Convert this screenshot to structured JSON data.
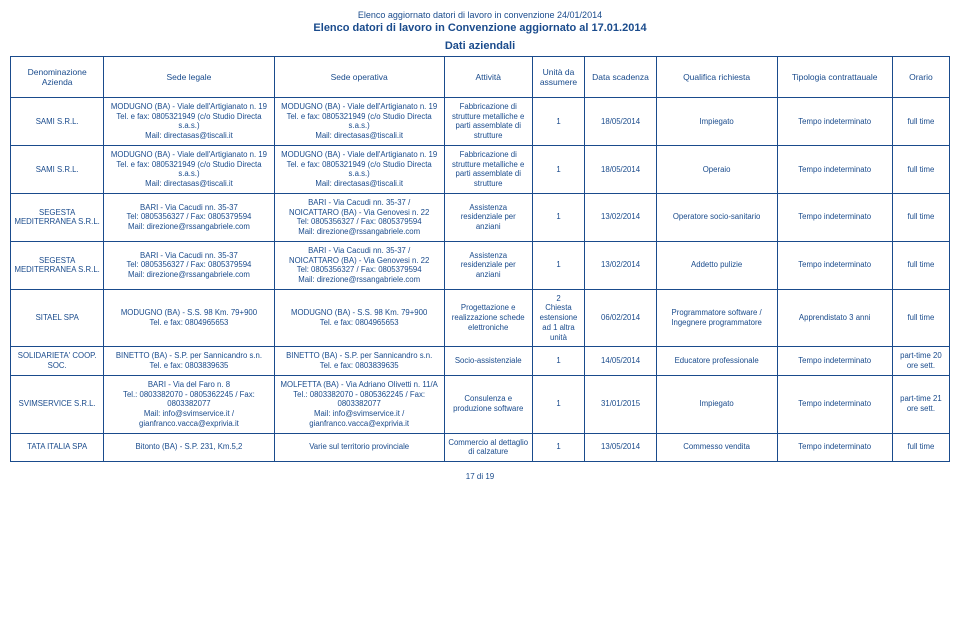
{
  "header": {
    "line1": "Elenco aggiornato datori di lavoro in convenzione 24/01/2014",
    "line2": "Elenco datori di lavoro in Convenzione aggiornato al 17.01.2014",
    "subtitle": "Dati aziendali"
  },
  "columns": {
    "denominazione": "Denominazione Azienda",
    "sede_legale": "Sede legale",
    "sede_operativa": "Sede operativa",
    "attivita": "Attività",
    "unita": "Unità da assumere",
    "scadenza": "Data scadenza",
    "qualifica": "Qualifica richiesta",
    "tipologia": "Tipologia contrattauale",
    "orario": "Orario"
  },
  "rows": [
    {
      "denominazione": "SAMI S.R.L.",
      "sede_legale": "MODUGNO (BA) - Viale dell'Artigianato n. 19\nTel. e fax: 0805321949 (c/o Studio Directa s.a.s.)\nMail: directasas@tiscali.it",
      "sede_operativa": "MODUGNO (BA) - Viale dell'Artigianato n. 19\nTel. e fax: 0805321949 (c/o Studio Directa s.a.s.)\nMail: directasas@tiscali.it",
      "attivita": "Fabbricazione di strutture metalliche e parti assemblate di strutture",
      "unita": "1",
      "scadenza": "18/05/2014",
      "qualifica": "Impiegato",
      "tipologia": "Tempo indeterminato",
      "orario": "full time"
    },
    {
      "denominazione": "SAMI S.R.L.",
      "sede_legale": "MODUGNO (BA) - Viale dell'Artigianato n. 19\nTel. e fax: 0805321949 (c/o Studio Directa s.a.s.)\nMail: directasas@tiscali.it",
      "sede_operativa": "MODUGNO (BA) - Viale dell'Artigianato n. 19\nTel. e fax: 0805321949 (c/o Studio Directa s.a.s.)\nMail: directasas@tiscali.it",
      "attivita": "Fabbricazione di strutture metalliche e parti assemblate di strutture",
      "unita": "1",
      "scadenza": "18/05/2014",
      "qualifica": "Operaio",
      "tipologia": "Tempo indeterminato",
      "orario": "full time"
    },
    {
      "denominazione": "SEGESTA MEDITERRANEA S.R.L.",
      "sede_legale": "BARI - Via Cacudi nn. 35-37\nTel: 0805356327 / Fax: 0805379594\nMail: direzione@rssangabriele.com",
      "sede_operativa": "BARI - Via Cacudi nn. 35-37 /\nNOICATTARO (BA) - Via Genovesi n. 22\nTel: 0805356327 / Fax: 0805379594\nMail: direzione@rssangabriele.com",
      "attivita": "Assistenza residenziale per anziani",
      "unita": "1",
      "scadenza": "13/02/2014",
      "qualifica": "Operatore socio-sanitario",
      "tipologia": "Tempo indeterminato",
      "orario": "full time"
    },
    {
      "denominazione": "SEGESTA MEDITERRANEA S.R.L.",
      "sede_legale": "BARI - Via Cacudi nn. 35-37\nTel: 0805356327 / Fax: 0805379594\nMail: direzione@rssangabriele.com",
      "sede_operativa": "BARI - Via Cacudi nn. 35-37 /\nNOICATTARO (BA) - Via Genovesi n. 22\nTel: 0805356327 / Fax: 0805379594\nMail: direzione@rssangabriele.com",
      "attivita": "Assistenza residenziale per anziani",
      "unita": "1",
      "scadenza": "13/02/2014",
      "qualifica": "Addetto pulizie",
      "tipologia": "Tempo indeterminato",
      "orario": "full time"
    },
    {
      "denominazione": "SITAEL SPA",
      "sede_legale": "MODUGNO (BA) - S.S. 98 Km. 79+900\nTel. e fax: 0804965653",
      "sede_operativa": "MODUGNO (BA) - S.S. 98 Km. 79+900\nTel. e fax: 0804965653",
      "attivita": "Progettazione e realizzazione schede elettroniche",
      "unita": "2\nChiesta estensione ad 1 altra unità",
      "scadenza": "06/02/2014",
      "qualifica": "Programmatore software / Ingegnere programmatore",
      "tipologia": "Apprendistato 3 anni",
      "orario": "full time"
    },
    {
      "denominazione": "SOLIDARIETA' COOP. SOC.",
      "sede_legale": "BINETTO (BA) - S.P. per Sannicandro s.n.\nTel. e fax: 0803839635",
      "sede_operativa": "BINETTO (BA) - S.P. per Sannicandro s.n.\nTel. e fax: 0803839635",
      "attivita": "Socio-assistenziale",
      "unita": "1",
      "scadenza": "14/05/2014",
      "qualifica": "Educatore professionale",
      "tipologia": "Tempo indeterminato",
      "orario": "part-time 20 ore sett."
    },
    {
      "denominazione": "SVIMSERVICE S.R.L.",
      "sede_legale": "BARI - Via del Faro n. 8\nTel.: 0803382070 - 0805362245 / Fax: 0803382077\nMail: info@svimservice.it / gianfranco.vacca@exprivia.it",
      "sede_operativa": "MOLFETTA (BA) - Via Adriano Olivetti n. 11/A\nTel.: 0803382070 - 0805362245 / Fax: 0803382077\nMail: info@svimservice.it / gianfranco.vacca@exprivia.it",
      "attivita": "Consulenza e produzione software",
      "unita": "1",
      "scadenza": "31/01/2015",
      "qualifica": "Impiegato",
      "tipologia": "Tempo indeterminato",
      "orario": "part-time 21 ore sett."
    },
    {
      "denominazione": "TATA ITALIA SPA",
      "sede_legale": "Bitonto (BA) - S.P. 231, Km.5,2",
      "sede_operativa": "Varie sul territorio provinciale",
      "attivita": "Commercio al dettaglio di calzature",
      "unita": "1",
      "scadenza": "13/05/2014",
      "qualifica": "Commesso vendita",
      "tipologia": "Tempo indeterminato",
      "orario": "full time"
    }
  ],
  "footer": "17 di 19"
}
